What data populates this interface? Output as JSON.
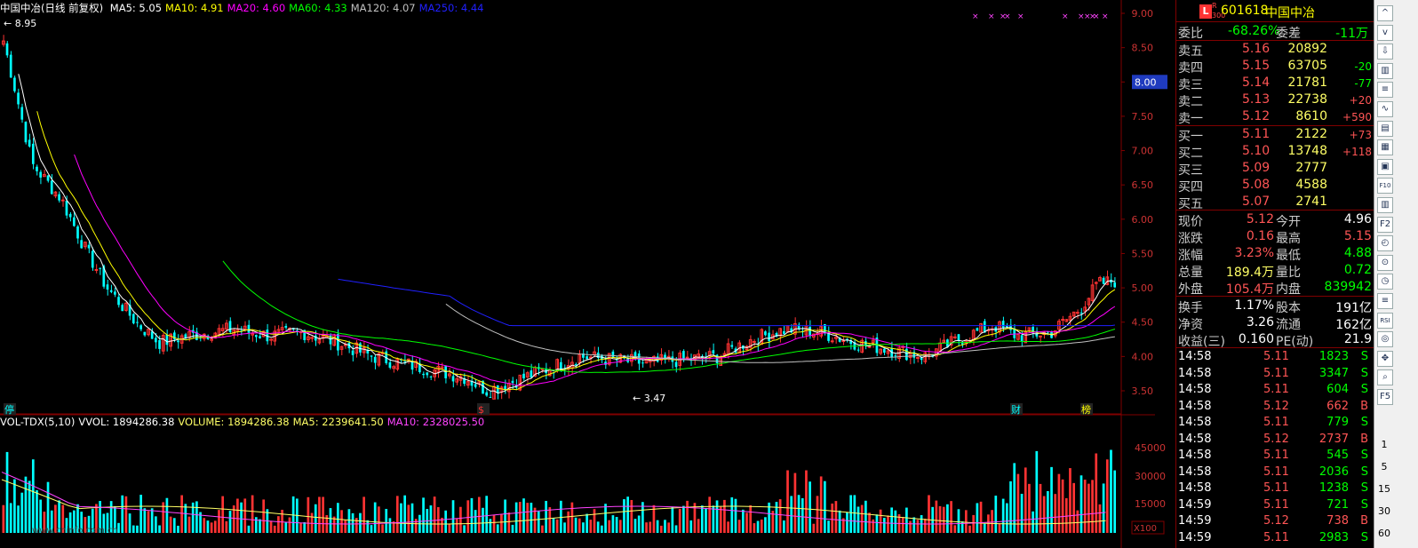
{
  "legend_top": {
    "title": "中国中冶(日线 前复权)",
    "items": [
      {
        "label": "MA5: 5.05",
        "color": "#ffffff"
      },
      {
        "label": "MA10: 4.91",
        "color": "#ffff00"
      },
      {
        "label": "MA20: 4.60",
        "color": "#ff00ff"
      },
      {
        "label": "MA60: 4.33",
        "color": "#00ff00"
      },
      {
        "label": "MA120: 4.07",
        "color": "#c0c0c0"
      },
      {
        "label": "MA250: 4.44",
        "color": "#2020ff"
      }
    ]
  },
  "legend_vol": {
    "items": [
      {
        "label": "VOL-TDX(5,10)",
        "color": "#ffffff"
      },
      {
        "label": "VVOL: 1894286.38",
        "color": "#ffffff"
      },
      {
        "label": "VOLUME: 1894286.38",
        "color": "#ffff66"
      },
      {
        "label": "MA5: 2239641.50",
        "color": "#ffff66"
      },
      {
        "label": "MA10: 2328025.50",
        "color": "#ff44ff"
      }
    ]
  },
  "price_axis": [
    "9.00",
    "8.50",
    "8.00",
    "7.50",
    "7.00",
    "6.50",
    "6.00",
    "5.50",
    "5.00",
    "4.50",
    "4.00",
    "3.50"
  ],
  "price_axis_badge": "8.00",
  "vol_axis": [
    "45000",
    "30000",
    "15000"
  ],
  "vol_axis_unit": "X100",
  "high_label": "8.95",
  "low_label": "3.47",
  "markers": {
    "left": "停",
    "mid": "$",
    "cai": "财",
    "bang": "榜"
  },
  "watermark": "www.cninfo.com.cn",
  "quote": {
    "badge_l": "L",
    "badge_r": "R",
    "badge_300": "300",
    "code": "601618",
    "name": "中国中冶",
    "ratio_label": "委比",
    "ratio_value": "-68.26%",
    "diff_label": "委差",
    "diff_value": "-11万",
    "asks": [
      {
        "label": "卖五",
        "price": "5.16",
        "vol": "20892",
        "chg": ""
      },
      {
        "label": "卖四",
        "price": "5.15",
        "vol": "63705",
        "chg": "-20"
      },
      {
        "label": "卖三",
        "price": "5.14",
        "vol": "21781",
        "chg": "-77"
      },
      {
        "label": "卖二",
        "price": "5.13",
        "vol": "22738",
        "chg": "+20"
      },
      {
        "label": "卖一",
        "price": "5.12",
        "vol": "8610",
        "chg": "+590"
      }
    ],
    "bids": [
      {
        "label": "买一",
        "price": "5.11",
        "vol": "2122",
        "chg": "+73"
      },
      {
        "label": "买二",
        "price": "5.10",
        "vol": "13748",
        "chg": "+118"
      },
      {
        "label": "买三",
        "price": "5.09",
        "vol": "2777",
        "chg": ""
      },
      {
        "label": "买四",
        "price": "5.08",
        "vol": "4588",
        "chg": ""
      },
      {
        "label": "买五",
        "price": "5.07",
        "vol": "2741",
        "chg": ""
      }
    ],
    "stats": [
      {
        "l1": "现价",
        "v1": "5.12",
        "c1": "#ff5555",
        "l2": "今开",
        "v2": "4.96",
        "c2": "#ffffff"
      },
      {
        "l1": "涨跌",
        "v1": "0.16",
        "c1": "#ff5555",
        "l2": "最高",
        "v2": "5.15",
        "c2": "#ff5555"
      },
      {
        "l1": "涨幅",
        "v1": "3.23%",
        "c1": "#ff5555",
        "l2": "最低",
        "v2": "4.88",
        "c2": "#00ff00"
      },
      {
        "l1": "总量",
        "v1": "189.4万",
        "c1": "#ffff66",
        "l2": "量比",
        "v2": "0.72",
        "c2": "#00ff00"
      },
      {
        "l1": "外盘",
        "v1": "105.4万",
        "c1": "#ff5555",
        "l2": "内盘",
        "v2": "839942",
        "c2": "#00ff00"
      }
    ],
    "stats2": [
      {
        "l1": "换手",
        "v1": "1.17%",
        "l2": "股本",
        "v2": "191亿"
      },
      {
        "l1": "净资",
        "v1": "3.26",
        "l2": "流通",
        "v2": "162亿"
      },
      {
        "l1": "收益(三)",
        "v1": "0.160",
        "l2": "PE(动)",
        "v2": "21.9"
      }
    ],
    "ticks": [
      {
        "time": "14:58",
        "price": "5.11",
        "vol": "1823",
        "side": "S"
      },
      {
        "time": "14:58",
        "price": "5.11",
        "vol": "3347",
        "side": "S"
      },
      {
        "time": "14:58",
        "price": "5.11",
        "vol": "604",
        "side": "S"
      },
      {
        "time": "14:58",
        "price": "5.12",
        "vol": "662",
        "side": "B"
      },
      {
        "time": "14:58",
        "price": "5.11",
        "vol": "779",
        "side": "S"
      },
      {
        "time": "14:58",
        "price": "5.12",
        "vol": "2737",
        "side": "B"
      },
      {
        "time": "14:58",
        "price": "5.11",
        "vol": "545",
        "side": "S"
      },
      {
        "time": "14:58",
        "price": "5.11",
        "vol": "2036",
        "side": "S"
      },
      {
        "time": "14:58",
        "price": "5.11",
        "vol": "1238",
        "side": "S"
      },
      {
        "time": "14:59",
        "price": "5.11",
        "vol": "721",
        "side": "S"
      },
      {
        "time": "14:59",
        "price": "5.12",
        "vol": "738",
        "side": "B"
      },
      {
        "time": "14:59",
        "price": "5.11",
        "vol": "2983",
        "side": "S"
      }
    ]
  },
  "toolbar": {
    "buttons": [
      "^",
      "v",
      "⇩",
      "▥",
      "≡",
      "∿",
      "▤",
      "▦",
      "▣",
      "F10",
      "▥",
      "F2",
      "◴",
      "⊙",
      "◷",
      "≡",
      "RSI",
      "◎",
      "✥",
      "⌕",
      "F5"
    ],
    "periods": [
      "1",
      "5",
      "15",
      "30",
      "60"
    ]
  },
  "colors": {
    "up": "#ff3333",
    "down": "#00ffff",
    "grid": "#800000"
  }
}
